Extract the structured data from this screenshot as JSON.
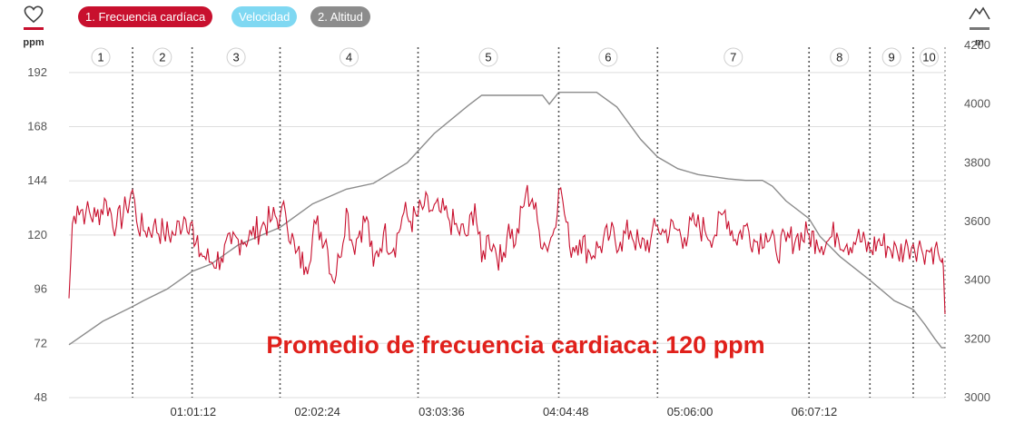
{
  "legend": {
    "heart_rate": "1. Frecuencia cardíaca",
    "speed": "Velocidad",
    "altitude": "2. Altitud"
  },
  "icons": {
    "left": "heart-icon",
    "right": "mountain-icon"
  },
  "units": {
    "left": "ppm",
    "right": "m"
  },
  "colors": {
    "heart_rate": "#c8102e",
    "speed": "#7fd8f2",
    "altitude": "#8c8c8c",
    "annotation": "#e0201b"
  },
  "annotation": "Promedio de frecuencia cardiaca: 120 ppm",
  "chart_data": {
    "type": "line",
    "x_ticks": [
      "01:01:12",
      "02:02:24",
      "03:03:36",
      "04:04:48",
      "05:06:00",
      "06:07:12"
    ],
    "x_tick_seconds": [
      3672,
      7344,
      11016,
      14688,
      18360,
      22032
    ],
    "xlim_seconds": [
      0,
      25900
    ],
    "y_left": {
      "unit": "ppm",
      "ticks": [
        48,
        72,
        96,
        120,
        144,
        168,
        192
      ],
      "ylim": [
        48,
        204
      ]
    },
    "y_right": {
      "unit": "m",
      "ticks": [
        3000,
        3200,
        3400,
        3600,
        3800,
        4000,
        4200
      ],
      "ylim": [
        3000,
        4200
      ]
    },
    "laps": {
      "labels": [
        "1",
        "2",
        "3",
        "4",
        "5",
        "6",
        "7",
        "8",
        "9",
        "10"
      ],
      "end_seconds": [
        1880,
        3640,
        6240,
        10320,
        14480,
        17400,
        21880,
        23680,
        24960,
        25900
      ]
    },
    "average_heart_rate": 120,
    "grid": true,
    "series": [
      {
        "name": "1. Frecuencia cardíaca",
        "axis": "left",
        "x_seconds": [
          0,
          100,
          250,
          500,
          800,
          1100,
          1400,
          1700,
          1880,
          2000,
          2200,
          2500,
          2800,
          3100,
          3400,
          3640,
          3700,
          3900,
          4200,
          4500,
          4800,
          5100,
          5400,
          5700,
          6000,
          6240,
          6400,
          6700,
          7000,
          7300,
          7600,
          7800,
          8000,
          8200,
          8400,
          8600,
          8800,
          9000,
          9300,
          9600,
          9900,
          10100,
          10320,
          10500,
          10700,
          11000,
          11200,
          11500,
          11800,
          12000,
          12200,
          12400,
          12600,
          12800,
          13000,
          13200,
          13500,
          13700,
          13900,
          14100,
          14300,
          14480,
          14600,
          14800,
          15100,
          15400,
          15700,
          16000,
          16300,
          16600,
          16900,
          17200,
          17400,
          17600,
          17900,
          18200,
          18500,
          18800,
          19100,
          19400,
          19700,
          20000,
          20300,
          20600,
          20900,
          21200,
          21500,
          21880,
          22100,
          22400,
          22700,
          23000,
          23300,
          23680,
          23900,
          24200,
          24500,
          24800,
          24960,
          25200,
          25400,
          25600,
          25700,
          25800,
          25850,
          25900
        ],
        "values": [
          92,
          125,
          133,
          130,
          128,
          135,
          124,
          132,
          140,
          126,
          122,
          124,
          121,
          120,
          128,
          126,
          115,
          112,
          108,
          110,
          116,
          118,
          120,
          124,
          127,
          128,
          130,
          112,
          106,
          125,
          118,
          100,
          110,
          132,
          115,
          122,
          128,
          106,
          121,
          114,
          130,
          126,
          129,
          133,
          131,
          130,
          128,
          122,
          120,
          134,
          108,
          120,
          114,
          108,
          125,
          116,
          138,
          136,
          122,
          115,
          120,
          140,
          135,
          115,
          118,
          112,
          115,
          120,
          117,
          122,
          114,
          118,
          124,
          121,
          123,
          119,
          125,
          122,
          120,
          131,
          118,
          124,
          117,
          121,
          113,
          117,
          119,
          120,
          118,
          117,
          121,
          116,
          119,
          113,
          117,
          115,
          112,
          115,
          116,
          114,
          113,
          114,
          112,
          108,
          106,
          85
        ]
      },
      {
        "name": "2. Altitud",
        "axis": "right",
        "x_seconds": [
          0,
          1000,
          1880,
          2200,
          2900,
          3640,
          4200,
          5000,
          6240,
          7200,
          8200,
          9000,
          10000,
          10320,
          10800,
          11800,
          12200,
          12800,
          13600,
          14000,
          14200,
          14480,
          15200,
          15600,
          16200,
          16900,
          17400,
          18000,
          18600,
          19500,
          20000,
          20500,
          20800,
          21200,
          21880,
          22200,
          22800,
          23680,
          24400,
          24960,
          25300,
          25600,
          25800,
          25900
        ],
        "values": [
          3180,
          3260,
          3310,
          3330,
          3370,
          3430,
          3455,
          3520,
          3580,
          3660,
          3710,
          3730,
          3800,
          3840,
          3900,
          3995,
          4030,
          4030,
          4030,
          4030,
          4000,
          4040,
          4040,
          4040,
          3990,
          3880,
          3820,
          3780,
          3760,
          3745,
          3740,
          3740,
          3720,
          3670,
          3610,
          3550,
          3480,
          3400,
          3330,
          3300,
          3250,
          3200,
          3170,
          3170
        ]
      }
    ]
  }
}
